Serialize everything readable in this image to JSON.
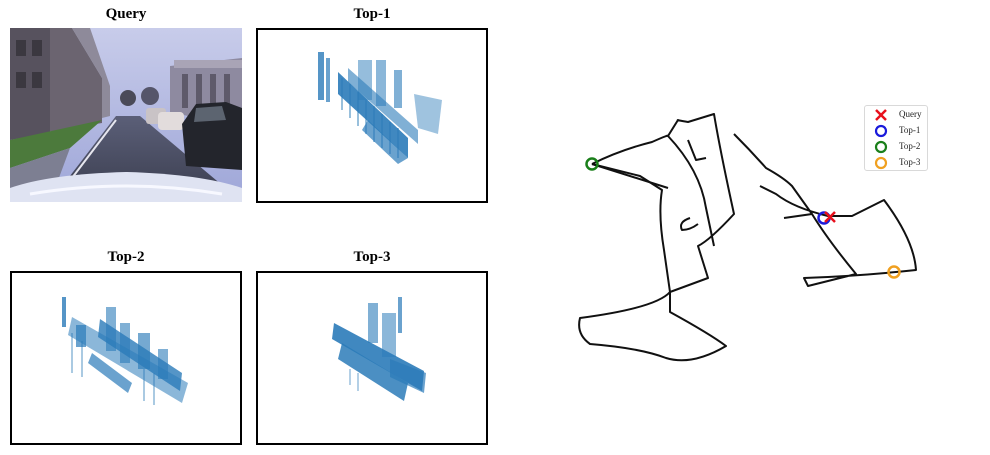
{
  "panels": {
    "query": {
      "title": "Query"
    },
    "top1": {
      "title": "Top-1"
    },
    "top2": {
      "title": "Top-2"
    },
    "top3": {
      "title": "Top-3"
    }
  },
  "map": {
    "legend": [
      {
        "key": "query",
        "label": "Query",
        "marker": "x",
        "color": "#e8101c"
      },
      {
        "key": "top1",
        "label": "Top-1",
        "marker": "circle",
        "color": "#1a1adb"
      },
      {
        "key": "top2",
        "label": "Top-2",
        "marker": "circle",
        "color": "#1a7f1a"
      },
      {
        "key": "top3",
        "label": "Top-3",
        "marker": "circle",
        "color": "#f0a020"
      }
    ]
  },
  "colors": {
    "pointcloud": "#2b7bb9",
    "route": "#111111"
  }
}
